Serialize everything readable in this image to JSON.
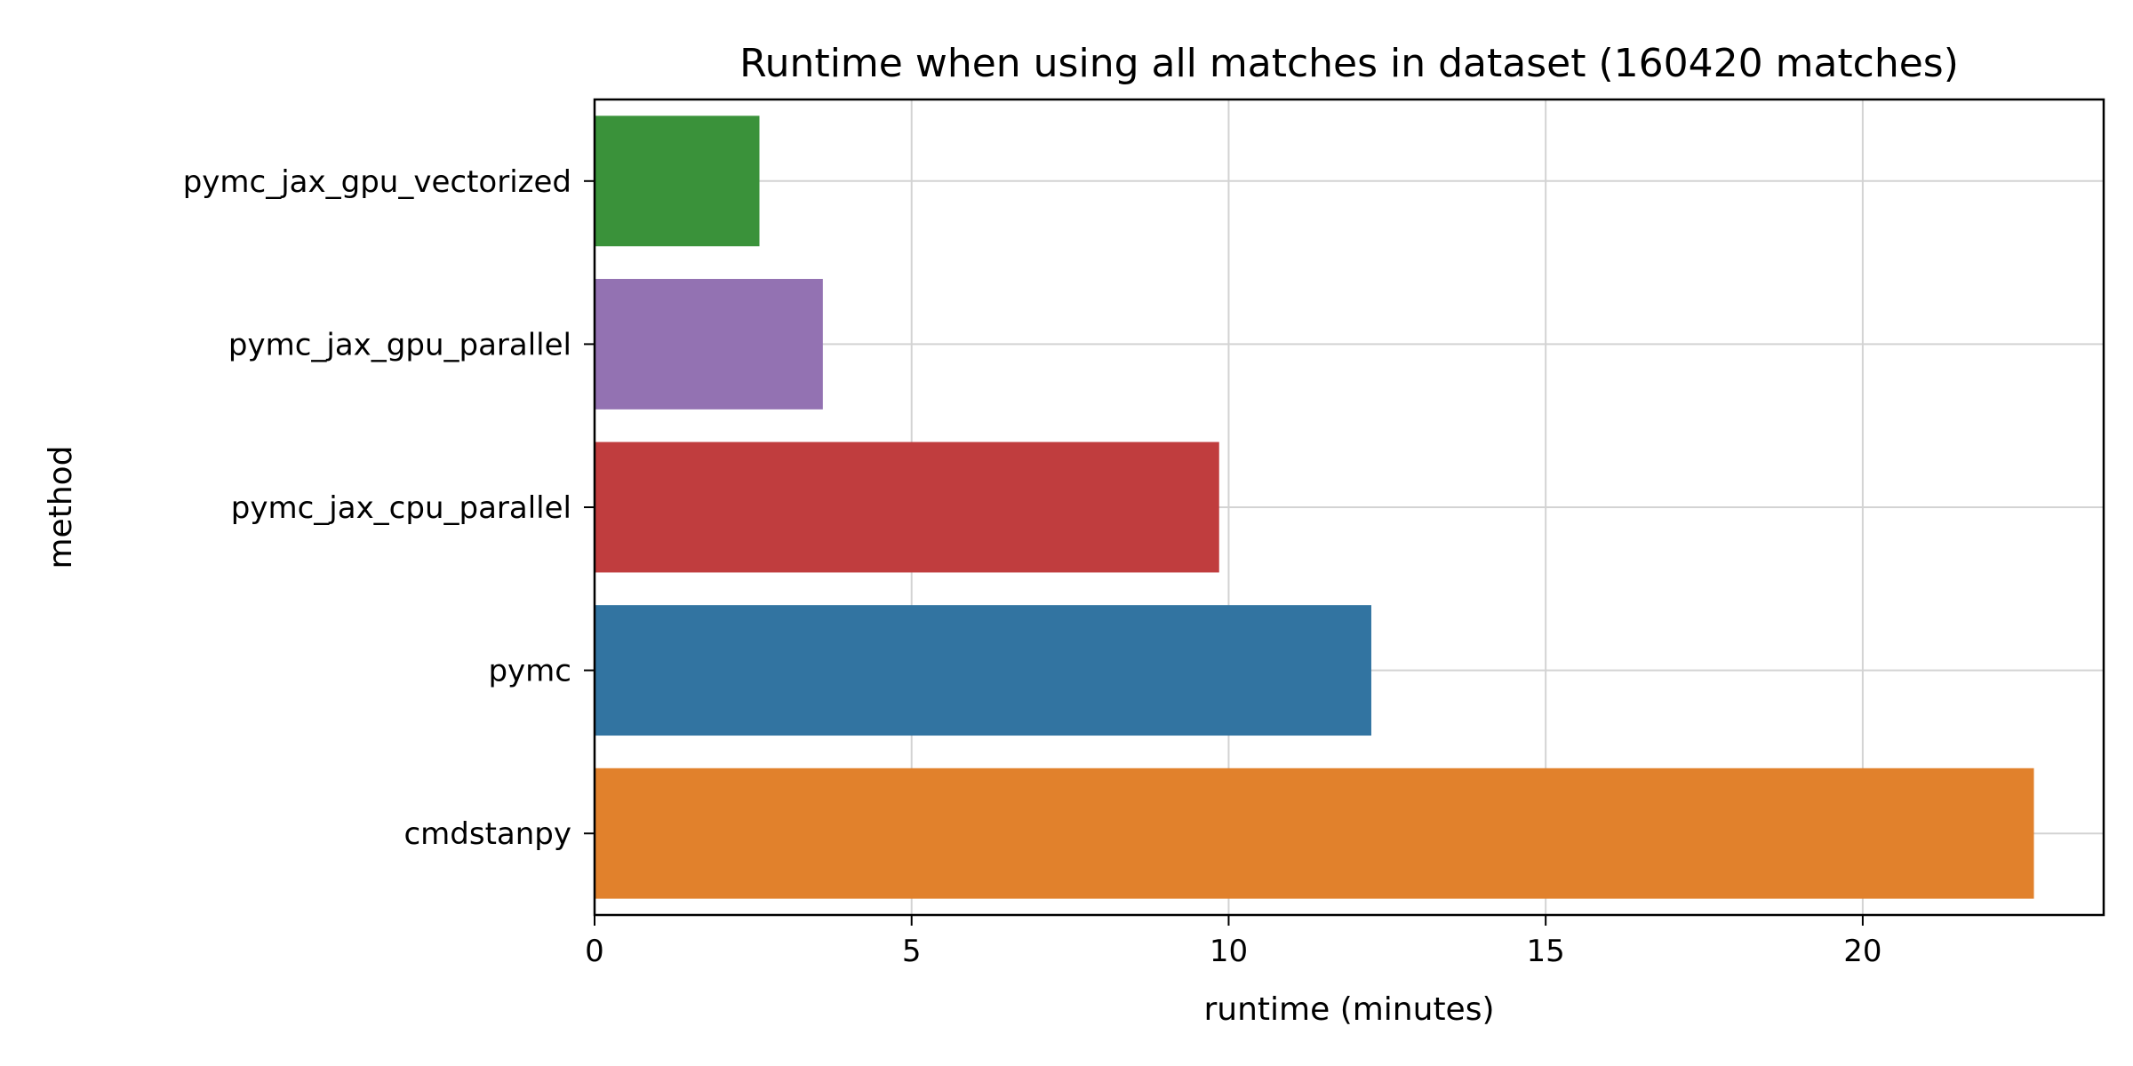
{
  "chart_data": {
    "type": "bar",
    "orientation": "horizontal",
    "title": "Runtime when using all matches in dataset (160420 matches)",
    "xlabel": "runtime (minutes)",
    "ylabel": "method",
    "categories": [
      "pymc_jax_gpu_vectorized",
      "pymc_jax_gpu_parallel",
      "pymc_jax_cpu_parallel",
      "pymc",
      "cmdstanpy"
    ],
    "values": [
      2.6,
      3.6,
      9.85,
      12.25,
      22.7
    ],
    "colors": [
      "#3a923a",
      "#9372b2",
      "#c03d3e",
      "#3274a1",
      "#e1812c"
    ],
    "xlim": [
      0,
      23.8
    ],
    "xticks": [
      0,
      5,
      10,
      15,
      20
    ],
    "grid": true
  }
}
